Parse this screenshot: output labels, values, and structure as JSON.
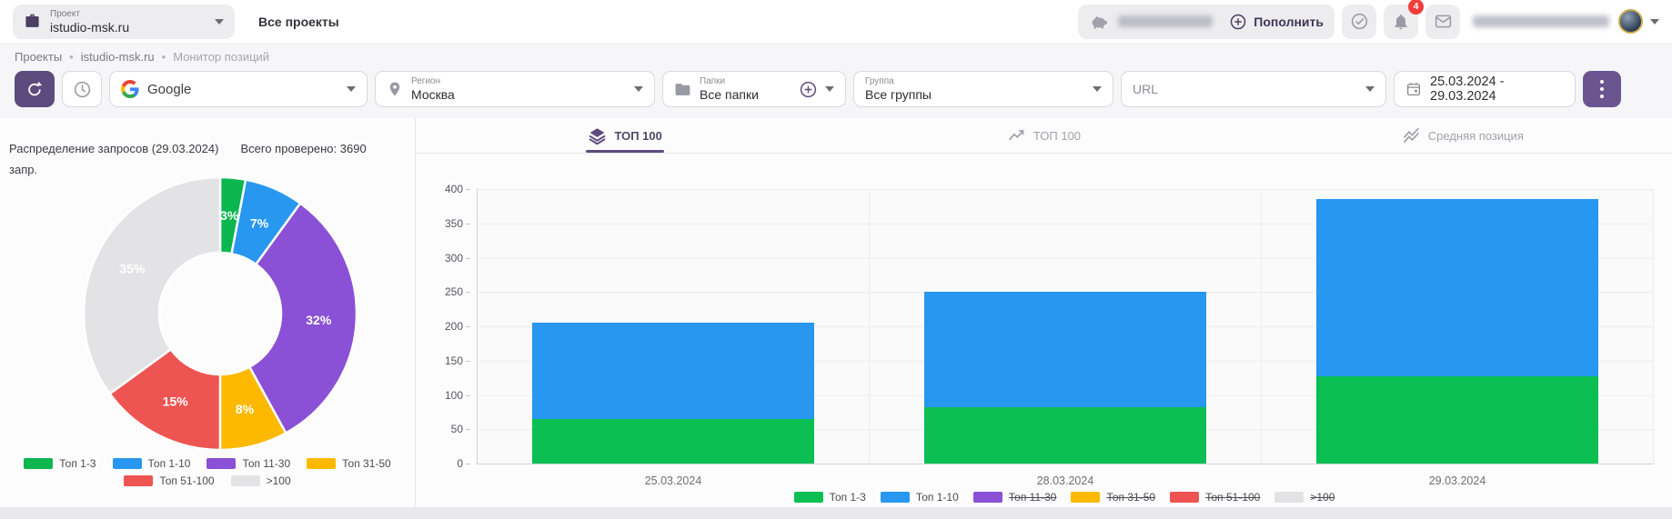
{
  "header": {
    "project_label": "Проект",
    "project_value": "istudio-msk.ru",
    "all_projects_label": "Все проекты",
    "topup_label": "Пополнить",
    "notifications_badge": "4"
  },
  "breadcrumb": {
    "items": [
      "Проекты",
      "istudio-msk.ru",
      "Монитор позиций"
    ],
    "separator": "•"
  },
  "toolbar": {
    "search_engine": {
      "value": "Google"
    },
    "region": {
      "label": "Регион",
      "value": "Москва"
    },
    "folders": {
      "label": "Папки",
      "value": "Все папки"
    },
    "groups": {
      "label": "Группа",
      "value": "Все группы"
    },
    "url": {
      "placeholder": "URL"
    },
    "date_range": "25.03.2024 - 29.03.2024"
  },
  "tabs": [
    {
      "label": "ТОП 100",
      "icon": "layers-icon",
      "active": true
    },
    {
      "label": "ТОП 100",
      "icon": "trend-arrows-icon",
      "active": false
    },
    {
      "label": "Средняя позиция",
      "icon": "zigzag-lines-icon",
      "active": false
    }
  ],
  "distribution": {
    "title": "Распределение запросов (29.03.2024)",
    "total_label": "Всего проверено: 3690 запр."
  },
  "palette": {
    "green": "#0bb64e",
    "blue": "#2797f0",
    "purple": "#8a50d5",
    "yellow": "#fdb900",
    "red": "#ee5451",
    "gray": "#e3e3e5",
    "accent_purple": "#5e4b7d",
    "badge_red": "#f23d3d"
  },
  "chart_data": [
    {
      "type": "pie",
      "title": "Распределение запросов (29.03.2024)",
      "labels": [
        "Топ 1-3",
        "Топ 1-10",
        "Топ 11-30",
        "Топ 31-50",
        "Топ 51-100",
        ">100"
      ],
      "values": [
        3,
        7,
        32,
        8,
        15,
        35
      ],
      "value_labels": [
        "3%",
        "7%",
        "32%",
        "8%",
        "15%",
        "35%"
      ],
      "colors": [
        "#0bb64e",
        "#2797f0",
        "#8a50d5",
        "#fdb900",
        "#ee5451",
        "#e3e3e5"
      ],
      "donut": true,
      "start_angle": "top-clockwise",
      "legend_rows": [
        [
          0,
          1,
          2,
          3
        ],
        [
          4,
          5
        ]
      ]
    },
    {
      "type": "bar",
      "stacked": true,
      "categories": [
        "25.03.2024",
        "28.03.2024",
        "29.03.2024"
      ],
      "series": [
        {
          "name": "Топ 1-3",
          "color": "#0bbf52",
          "values": [
            65,
            82,
            127
          ]
        },
        {
          "name": "Топ 1-10",
          "color": "#2797f0",
          "values": [
            140,
            168,
            258
          ]
        }
      ],
      "stack_totals": [
        205,
        250,
        385
      ],
      "ylim": [
        0,
        400
      ],
      "yticks": [
        0,
        50,
        100,
        150,
        200,
        250,
        300,
        350,
        400
      ],
      "grid": true,
      "legend_position": "bottom",
      "legend": [
        {
          "label": "Топ 1-3",
          "color": "#0bbf52",
          "disabled": false
        },
        {
          "label": "Топ 1-10",
          "color": "#2797f0",
          "disabled": false
        },
        {
          "label": "Топ 11-30",
          "color": "#8a50d5",
          "disabled": true
        },
        {
          "label": "Топ 31-50",
          "color": "#fdb900",
          "disabled": true
        },
        {
          "label": "Топ 51-100",
          "color": "#ee5451",
          "disabled": true
        },
        {
          "label": ">100",
          "color": "#e3e3e5",
          "disabled": true
        }
      ]
    }
  ]
}
